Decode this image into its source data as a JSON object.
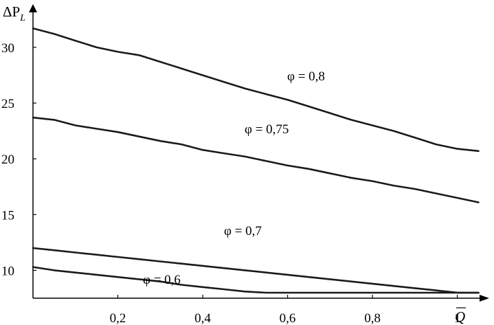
{
  "chart_data": {
    "type": "line",
    "ylabel": "ΔP",
    "ylabel_sub": "L",
    "xlabel": "Q",
    "xlim": [
      0,
      1.08
    ],
    "ylim": [
      7.5,
      34
    ],
    "x_ticks": [
      0.2,
      0.4,
      0.6,
      0.8,
      1
    ],
    "x_tick_labels": [
      "0,2",
      "0,4",
      "0,6",
      "0,8",
      "1"
    ],
    "y_ticks": [
      10,
      15,
      20,
      25,
      30
    ],
    "y_tick_labels": [
      "10",
      "15",
      "20",
      "25",
      "30"
    ],
    "series": [
      {
        "name": "φ = 0,8",
        "x": [
          0,
          0.05,
          0.1,
          0.15,
          0.2,
          0.25,
          0.3,
          0.35,
          0.4,
          0.45,
          0.5,
          0.55,
          0.6,
          0.65,
          0.7,
          0.75,
          0.8,
          0.85,
          0.9,
          0.95,
          1.0,
          1.05
        ],
        "y": [
          31.7,
          31.2,
          30.6,
          30.0,
          29.6,
          29.3,
          28.7,
          28.1,
          27.5,
          26.9,
          26.3,
          25.8,
          25.3,
          24.7,
          24.1,
          23.5,
          23.0,
          22.5,
          21.9,
          21.3,
          20.9,
          20.7
        ]
      },
      {
        "name": "φ = 0,75",
        "x": [
          0,
          0.05,
          0.1,
          0.15,
          0.2,
          0.25,
          0.3,
          0.35,
          0.4,
          0.45,
          0.5,
          0.55,
          0.6,
          0.65,
          0.7,
          0.75,
          0.8,
          0.85,
          0.9,
          0.95,
          1.0,
          1.05
        ],
        "y": [
          23.7,
          23.5,
          23.0,
          22.7,
          22.4,
          22.0,
          21.6,
          21.3,
          20.8,
          20.5,
          20.2,
          19.8,
          19.4,
          19.1,
          18.7,
          18.3,
          18.0,
          17.6,
          17.3,
          16.9,
          16.5,
          16.1
        ]
      },
      {
        "name": "φ = 0,7",
        "x": [
          0,
          0.05,
          0.1,
          0.15,
          0.2,
          0.25,
          0.3,
          0.35,
          0.4,
          0.45,
          0.5,
          0.55,
          0.6,
          0.65,
          0.7,
          0.75,
          0.8,
          0.85,
          0.9,
          0.95,
          1.0,
          1.05
        ],
        "y": [
          12.0,
          11.8,
          11.6,
          11.4,
          11.2,
          11.0,
          10.8,
          10.6,
          10.4,
          10.2,
          10.0,
          9.8,
          9.6,
          9.4,
          9.2,
          9.0,
          8.8,
          8.6,
          8.4,
          8.2,
          8.0,
          7.8
        ]
      },
      {
        "name": "φ = 0,6",
        "x": [
          0,
          0.05,
          0.1,
          0.15,
          0.2,
          0.25,
          0.3,
          0.35,
          0.4,
          0.45,
          0.5,
          0.55,
          0.6,
          0.65,
          0.7,
          0.75,
          0.8,
          0.85,
          0.9,
          0.95,
          1.0,
          1.05
        ],
        "y": [
          10.3,
          10.0,
          9.8,
          9.6,
          9.4,
          9.2,
          9.0,
          8.7,
          8.5,
          8.3,
          8.1,
          7.9,
          7.7,
          7.5,
          7.3,
          7.1,
          6.9,
          6.7,
          6.4,
          6.2,
          6.0,
          5.8
        ]
      }
    ],
    "grid": false,
    "legend": "inline labels next to curves"
  }
}
